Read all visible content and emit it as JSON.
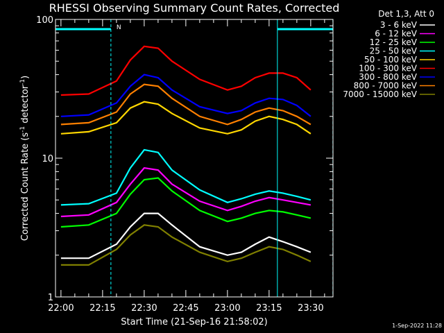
{
  "chart_data": {
    "type": "line",
    "title": "RHESSI Observing Summary Count Rates, Corrected",
    "xlabel": "Start Time (21-Sep-16 21:58:02)",
    "ylabel": "Corrected Count Rate (s⁻¹ detector⁻¹)",
    "ylabel_main": "Corrected Count Rate (s",
    "ylabel_sup1": "-1",
    "ylabel_mid": " detector",
    "ylabel_sup2": "-1",
    "ylabel_end": ")",
    "y_scale": "log",
    "ylim": [
      1,
      100
    ],
    "xlim": [
      "21:58:02",
      "23:38:02"
    ],
    "x_ticks": [
      "22:00",
      "22:15",
      "22:30",
      "22:45",
      "23:00",
      "23:15",
      "23:30"
    ],
    "y_ticks": [
      "1",
      "10",
      "100"
    ],
    "legend_header": "Det 1,3, Att 0",
    "legend_position": "right",
    "footer_date": "1-Sep-2022 11:28",
    "flag_label": "N",
    "x": [
      "22:00",
      "22:10",
      "22:20",
      "22:25",
      "22:30",
      "22:35",
      "22:40",
      "22:50",
      "23:00",
      "23:05",
      "23:10",
      "23:15",
      "23:20",
      "23:25",
      "23:30"
    ],
    "series": [
      {
        "name": "3 - 6 keV",
        "color": "#ffffff",
        "values": [
          1.9,
          1.9,
          2.4,
          3.2,
          4.0,
          4.0,
          3.3,
          2.3,
          2.0,
          2.1,
          2.4,
          2.7,
          2.5,
          2.3,
          2.1
        ]
      },
      {
        "name": "6 - 12 keV",
        "color": "#ff00ff",
        "values": [
          3.8,
          3.9,
          4.8,
          6.5,
          8.5,
          8.2,
          6.5,
          4.9,
          4.2,
          4.5,
          4.9,
          5.2,
          5.0,
          4.8,
          4.6
        ]
      },
      {
        "name": "12 - 25 keV",
        "color": "#00ff00",
        "values": [
          3.2,
          3.3,
          4.0,
          5.5,
          7.0,
          7.2,
          5.8,
          4.2,
          3.5,
          3.7,
          4.0,
          4.2,
          4.1,
          3.9,
          3.7
        ]
      },
      {
        "name": "25 - 50 keV",
        "color": "#00ffff",
        "values": [
          4.6,
          4.7,
          5.6,
          8.5,
          11.5,
          11.0,
          8.2,
          5.9,
          4.8,
          5.1,
          5.5,
          5.8,
          5.6,
          5.3,
          5.0
        ]
      },
      {
        "name": "50 - 100 keV",
        "color": "#ffd700",
        "values": [
          15,
          15.5,
          18,
          23,
          25.5,
          24.5,
          21,
          16.5,
          15,
          16,
          18.5,
          20,
          19,
          17.5,
          15
        ]
      },
      {
        "name": "100 - 300 keV",
        "color": "#ff0000",
        "values": [
          28.5,
          29,
          36,
          51,
          64,
          62,
          50,
          37,
          31,
          33,
          38,
          41,
          41,
          38,
          31
        ]
      },
      {
        "name": "300 - 800 keV",
        "color": "#0000ff",
        "values": [
          20,
          20.5,
          25,
          33,
          40,
          38,
          31,
          23.5,
          21,
          22,
          25,
          27,
          26.5,
          24,
          20
        ]
      },
      {
        "name": "800 - 7000 keV",
        "color": "#ff8000",
        "values": [
          17.5,
          18,
          21.5,
          29,
          34,
          33,
          27,
          20,
          17.5,
          19,
          21.5,
          23,
          22,
          20,
          17.5
        ]
      },
      {
        "name": "7000 - 15000 keV",
        "color": "#808000",
        "values": [
          1.7,
          1.7,
          2.2,
          2.8,
          3.3,
          3.2,
          2.7,
          2.1,
          1.8,
          1.9,
          2.1,
          2.3,
          2.2,
          2.0,
          1.8
        ]
      }
    ]
  }
}
